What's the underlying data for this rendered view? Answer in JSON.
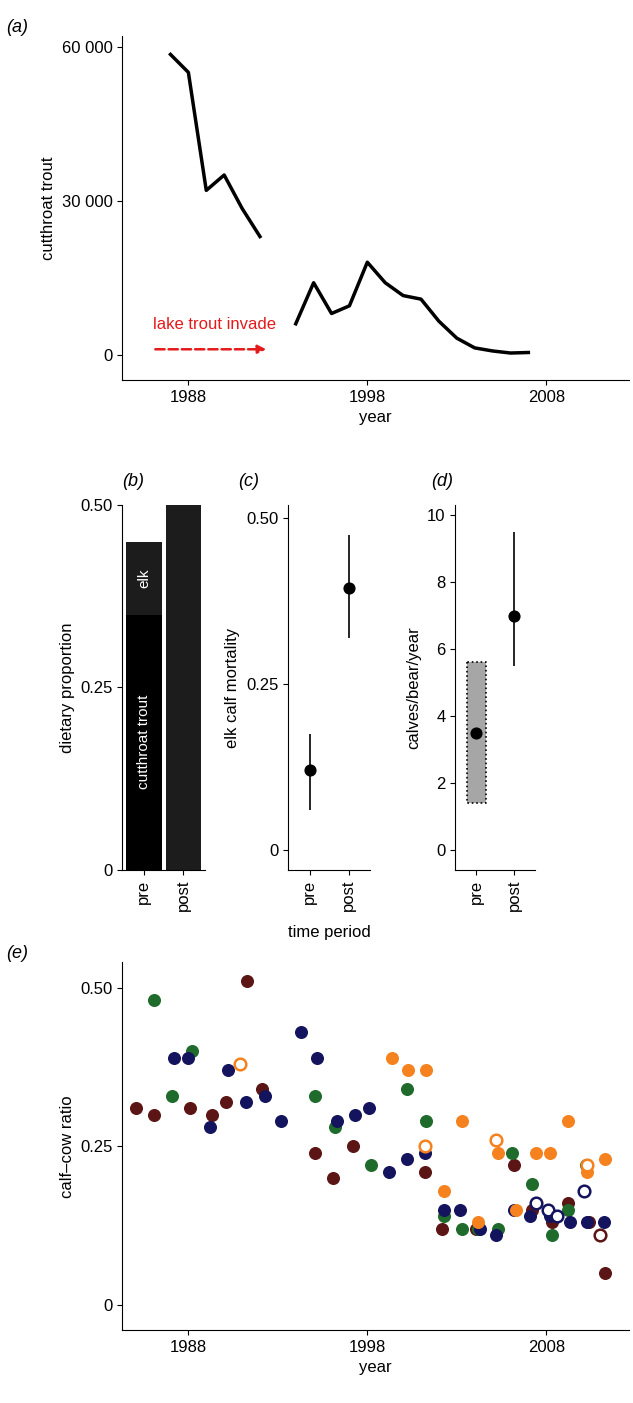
{
  "chart_data": [
    {
      "type": "line",
      "title": "(a)",
      "x_label": "year",
      "y_label": "cutthroat trout",
      "x": [
        1987,
        1988,
        1989,
        1990,
        1991,
        1992,
        1993,
        1994,
        1995,
        1996,
        1997,
        1998,
        1999,
        2000,
        2001,
        2002,
        2003,
        2004,
        2005,
        2006,
        2007
      ],
      "series": [
        {
          "color": "#000000",
          "values": [
            58500,
            55000,
            32000,
            35000,
            28500,
            23000,
            null,
            6000,
            14000,
            8000,
            9500,
            18000,
            14000,
            11500,
            10800,
            6500,
            3200,
            1300,
            700,
            300,
            400
          ]
        }
      ],
      "annotations": [
        "lake trout invade"
      ],
      "xlim": [
        1984.3,
        2012.6
      ],
      "xticks": [
        1988,
        1998,
        2008
      ],
      "ylim": [
        -5000,
        62000
      ],
      "yticks": [
        0,
        {
          "value": 30000,
          "label": "30 000"
        },
        {
          "value": 60000,
          "label": "60 000"
        }
      ]
    },
    {
      "type": "bar",
      "stacked": true,
      "title": "(b)",
      "y_label": "dietary proportion",
      "categories": [
        "pre",
        "post"
      ],
      "series": [
        {
          "name": "cutthroat trout",
          "color": "#000000",
          "values": [
            0.35,
            0
          ]
        },
        {
          "name": "elk",
          "color": "#1c1c1c",
          "values": [
            0.1,
            0.5
          ]
        }
      ],
      "ylim": [
        0,
        0.5
      ],
      "yticks": [
        0,
        0.25,
        {
          "value": 0.5,
          "label": "0.50"
        }
      ]
    },
    {
      "type": "scatter",
      "title": "(c)",
      "x_label": "time period",
      "y_label": "elk calf mortality",
      "categories": [
        "pre",
        "post"
      ],
      "values": [
        0.12,
        0.395
      ],
      "ci_low": [
        0.06,
        0.32
      ],
      "ci_high": [
        0.175,
        0.475
      ],
      "ylim": [
        -0.03,
        0.52
      ],
      "yticks": [
        0,
        0.25,
        {
          "value": 0.5,
          "label": "0.50"
        }
      ]
    },
    {
      "type": "scatter",
      "title": "(d)",
      "y_label": "calves/bear/year",
      "categories": [
        "pre",
        "post"
      ],
      "values": [
        3.5,
        7.0
      ],
      "ci_low": [
        null,
        5.5
      ],
      "ci_high": [
        null,
        9.5
      ],
      "range_low": [
        1.4,
        null
      ],
      "range_high": [
        5.6,
        null
      ],
      "ylim": [
        -0.6,
        10.3
      ],
      "yticks": [
        0,
        2,
        4,
        6,
        8,
        10
      ]
    },
    {
      "type": "scatter",
      "title": "(e)",
      "x_label": "year",
      "y_label": "calf–cow ratio",
      "xlim": [
        1984.3,
        2012.6
      ],
      "xticks": [
        1988,
        1998,
        2008
      ],
      "ylim": [
        -0.04,
        0.54
      ],
      "yticks": [
        0,
        0.25,
        {
          "value": 0.5,
          "label": "0.50"
        }
      ],
      "series": [
        {
          "color": "#5c1515",
          "marker": "filled",
          "x": [
            1985.1,
            1986.1,
            1988.1,
            1989.3,
            1990.1,
            1991.3,
            1992.1,
            1995.1,
            1996.1,
            1997.2,
            2001.2,
            2002.2,
            2004.1,
            2006.2,
            2007.2,
            2008.3,
            2009.2,
            2010.4,
            2011.3
          ],
          "values": [
            0.31,
            0.3,
            0.31,
            0.3,
            0.32,
            0.51,
            0.34,
            0.24,
            0.2,
            0.25,
            0.21,
            0.12,
            0.12,
            0.22,
            0.15,
            0.13,
            0.16,
            0.13,
            0.05
          ]
        },
        {
          "color": "#5c1515",
          "marker": "open",
          "x": [
            2011.0
          ],
          "values": [
            0.11
          ]
        },
        {
          "color": "#1f6b2c",
          "marker": "filled",
          "x": [
            1986.1,
            1987.1,
            1988.2,
            1995.1,
            1996.2,
            1998.2,
            2000.2,
            2001.3,
            2002.3,
            2003.3,
            2004.2,
            2005.3,
            2006.1,
            2007.2,
            2008.3,
            2009.2,
            2010.2
          ],
          "values": [
            0.48,
            0.33,
            0.4,
            0.33,
            0.28,
            0.22,
            0.34,
            0.29,
            0.14,
            0.12,
            0.12,
            0.12,
            0.24,
            0.19,
            0.11,
            0.15,
            0.22
          ]
        },
        {
          "color": "#14145e",
          "marker": "filled",
          "x": [
            1987.2,
            1988.0,
            1989.2,
            1990.2,
            1991.2,
            1992.3,
            1993.2,
            1994.3,
            1995.2,
            1996.3,
            1997.3,
            1998.1,
            1999.2,
            2000.2,
            2001.2,
            2002.3,
            2003.2,
            2004.3,
            2005.2,
            2006.2,
            2007.1,
            2008.2,
            2009.3,
            2010.3,
            2011.2
          ],
          "values": [
            0.39,
            0.39,
            0.28,
            0.37,
            0.32,
            0.33,
            0.29,
            0.43,
            0.39,
            0.29,
            0.3,
            0.31,
            0.21,
            0.23,
            0.24,
            0.15,
            0.15,
            0.12,
            0.11,
            0.15,
            0.14,
            0.14,
            0.13,
            0.13,
            0.13
          ]
        },
        {
          "color": "#14145e",
          "marker": "open",
          "x": [
            2007.4,
            2008.1,
            2008.6,
            2010.1
          ],
          "values": [
            0.16,
            0.15,
            0.14,
            0.18
          ]
        },
        {
          "color": "#f5821f",
          "marker": "filled",
          "x": [
            1999.4,
            2000.3,
            2001.3,
            2002.3,
            2003.3,
            2004.2,
            2005.3,
            2006.3,
            2007.4,
            2008.2,
            2009.2,
            2010.3,
            2011.3
          ],
          "values": [
            0.39,
            0.37,
            0.37,
            0.18,
            0.29,
            0.13,
            0.24,
            0.15,
            0.24,
            0.24,
            0.29,
            0.21,
            0.23
          ]
        },
        {
          "color": "#f5821f",
          "marker": "open",
          "x": [
            1990.9,
            2001.2,
            2005.2,
            2010.3
          ],
          "values": [
            0.38,
            0.25,
            0.26,
            0.22
          ]
        }
      ]
    }
  ]
}
